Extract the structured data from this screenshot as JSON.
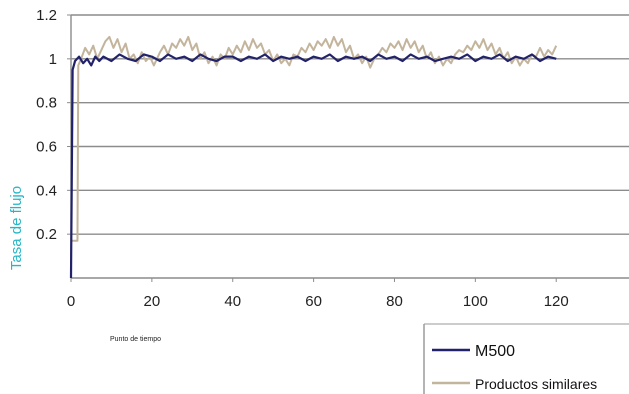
{
  "chart_data": {
    "type": "line",
    "title": "",
    "xlabel": "Punto de tiempo",
    "ylabel": "Tasa de flujo",
    "xlim": [
      0,
      138
    ],
    "ylim": [
      0,
      1.2
    ],
    "x_ticks": [
      0,
      20,
      40,
      60,
      80,
      100,
      120
    ],
    "y_ticks": [
      0.2,
      0.4,
      0.6,
      0.8,
      1,
      1.2
    ],
    "grid": "horizontal",
    "legend_position": "bottom-right",
    "series": [
      {
        "name": "M500",
        "color": "#22226a",
        "x": [
          0,
          0.4,
          1,
          2,
          3,
          4,
          5,
          6,
          7,
          8,
          10,
          12,
          14,
          16,
          18,
          20,
          22,
          24,
          26,
          28,
          30,
          32,
          34,
          36,
          38,
          40,
          42,
          44,
          46,
          48,
          50,
          52,
          54,
          56,
          58,
          60,
          62,
          64,
          66,
          68,
          70,
          72,
          74,
          76,
          78,
          80,
          82,
          84,
          86,
          88,
          90,
          92,
          94,
          96,
          98,
          100,
          102,
          104,
          106,
          108,
          110,
          112,
          114,
          116,
          118,
          120
        ],
        "values": [
          0,
          0.95,
          0.99,
          1.01,
          0.98,
          1.0,
          0.97,
          1.01,
          0.99,
          1.01,
          0.99,
          1.02,
          1.0,
          0.99,
          1.02,
          1.01,
          0.99,
          1.02,
          1.0,
          1.01,
          0.99,
          1.02,
          1.0,
          0.99,
          1.01,
          1.01,
          0.99,
          1.01,
          1.0,
          1.02,
          0.99,
          1.01,
          1.0,
          1.01,
          0.99,
          1.01,
          1.0,
          1.02,
          0.99,
          1.01,
          1.0,
          1.01,
          0.99,
          1.02,
          1.0,
          1.01,
          0.99,
          1.02,
          1.0,
          1.01,
          0.99,
          1.0,
          1.01,
          1.0,
          1.02,
          0.99,
          1.01,
          1.0,
          1.02,
          0.99,
          1.01,
          1.0,
          1.02,
          0.99,
          1.01,
          1.0
        ]
      },
      {
        "name": "Productos similares",
        "color": "#c3b49c",
        "x": [
          0,
          0.5,
          1.6,
          1.8,
          2.5,
          3.5,
          4.5,
          5.5,
          6.5,
          7.5,
          8.5,
          9.5,
          10.5,
          11.5,
          12.5,
          13.5,
          14.5,
          15.5,
          16.5,
          17.5,
          18.5,
          19.5,
          20.5,
          22,
          23,
          24,
          25,
          26,
          27,
          28,
          29,
          30,
          31,
          32,
          33,
          34,
          35,
          36,
          37,
          38,
          39,
          40,
          41,
          42,
          43,
          44,
          45,
          46,
          47,
          48,
          49,
          50,
          51,
          52,
          53,
          54,
          55,
          56,
          57,
          58,
          59,
          60,
          61,
          62,
          63,
          64,
          65,
          66,
          67,
          68,
          69,
          70,
          71,
          72,
          73,
          74,
          75,
          76,
          77,
          78,
          79,
          80,
          81,
          82,
          83,
          84,
          85,
          86,
          87,
          88,
          89,
          90,
          91,
          92,
          93,
          94,
          95,
          96,
          97,
          98,
          99,
          100,
          101,
          102,
          103,
          104,
          105,
          106,
          107,
          108,
          109,
          110,
          111,
          112,
          113,
          114,
          115,
          116,
          117,
          118,
          119,
          120
        ],
        "values": [
          0.17,
          0.17,
          0.17,
          0.97,
          1.0,
          1.05,
          1.02,
          1.06,
          1.0,
          1.04,
          1.08,
          1.1,
          1.05,
          1.09,
          1.03,
          1.07,
          1.0,
          1.02,
          0.98,
          1.03,
          0.99,
          1.01,
          0.97,
          1.03,
          1.06,
          1.02,
          1.07,
          1.05,
          1.09,
          1.06,
          1.1,
          1.04,
          1.07,
          1.0,
          1.03,
          0.98,
          1.01,
          0.97,
          1.02,
          1.0,
          1.05,
          1.02,
          1.06,
          1.03,
          1.08,
          1.04,
          1.09,
          1.05,
          1.07,
          1.02,
          1.04,
          0.99,
          1.02,
          0.98,
          1.0,
          0.97,
          1.02,
          1.01,
          1.05,
          1.03,
          1.07,
          1.04,
          1.08,
          1.06,
          1.09,
          1.05,
          1.1,
          1.06,
          1.09,
          1.03,
          1.06,
          1.0,
          1.02,
          0.98,
          1.01,
          0.96,
          1.0,
          1.02,
          1.05,
          1.03,
          1.07,
          1.05,
          1.08,
          1.04,
          1.09,
          1.05,
          1.08,
          1.03,
          1.06,
          1.0,
          1.03,
          0.98,
          1.01,
          0.97,
          1.0,
          0.98,
          1.02,
          1.04,
          1.03,
          1.06,
          1.04,
          1.08,
          1.05,
          1.09,
          1.04,
          1.07,
          1.02,
          1.05,
          1.0,
          1.03,
          0.98,
          1.01,
          0.97,
          1.0,
          0.98,
          1.02,
          1.01,
          1.05,
          1.01,
          1.04,
          1.02,
          1.06
        ]
      }
    ]
  }
}
